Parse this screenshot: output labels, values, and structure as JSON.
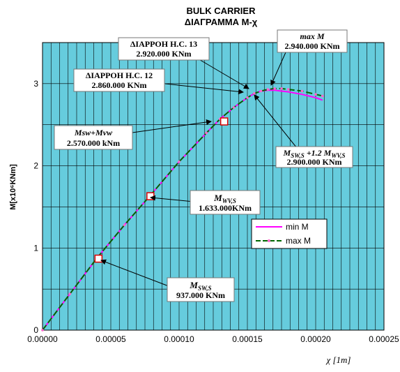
{
  "chart_data": {
    "type": "line",
    "title": "BULK CARRIER",
    "subtitle": "ΔΙΑΓΡΑΜΜΑ M-χ",
    "xlabel": "χ [1m]",
    "ylabel": "M[x10⁶KNm]",
    "xlim": [
      0,
      0.00025
    ],
    "ylim": [
      0,
      3.5
    ],
    "x_ticks": [
      "0.00000",
      "0.00005",
      "0.00010",
      "0.00015",
      "0.00020",
      "0.00025"
    ],
    "y_ticks": [
      "0",
      "1",
      "2",
      "3"
    ],
    "grid": true,
    "legend_position": "right",
    "background_color": "#66ccdd",
    "series": [
      {
        "name": "min M",
        "color": "#ff00ff",
        "x": [
          0,
          2e-05,
          4e-05,
          6e-05,
          8e-05,
          0.0001,
          0.00012,
          0.00013,
          0.00014,
          0.00015,
          0.000155,
          0.00016,
          0.000165,
          0.00017,
          0.000175,
          0.00018,
          0.00019,
          0.0002,
          0.000205
        ],
        "y": [
          0,
          0.44,
          0.88,
          1.28,
          1.66,
          2.05,
          2.4,
          2.57,
          2.71,
          2.83,
          2.88,
          2.91,
          2.92,
          2.92,
          2.91,
          2.9,
          2.87,
          2.83,
          2.8
        ]
      },
      {
        "name": "max  M",
        "color": "#006600",
        "x": [
          0,
          2e-05,
          4e-05,
          6e-05,
          8e-05,
          0.0001,
          0.00012,
          0.00013,
          0.00014,
          0.00015,
          0.000155,
          0.00016,
          0.000165,
          0.00017,
          0.000175,
          0.00018,
          0.00019,
          0.0002,
          0.000205
        ],
        "y": [
          0,
          0.44,
          0.88,
          1.28,
          1.66,
          2.05,
          2.4,
          2.57,
          2.71,
          2.83,
          2.88,
          2.91,
          2.93,
          2.94,
          2.94,
          2.93,
          2.91,
          2.87,
          2.85
        ]
      }
    ],
    "markers": [
      {
        "x": 4.1e-05,
        "y": 0.87
      },
      {
        "x": 7.9e-05,
        "y": 1.63
      },
      {
        "x": 0.000133,
        "y": 2.54
      }
    ],
    "annotations": [
      {
        "id": "hc13",
        "lines": [
          "ΔΙΑΡΡΟΗ Η.C. 13",
          "2.920.000 KNm"
        ]
      },
      {
        "id": "maxm",
        "lines": [
          "max M",
          "2.940.000 KNm"
        ]
      },
      {
        "id": "hc12",
        "lines": [
          "ΔΙΑΡΡΟΗ Η.C. 12",
          "2.860.000 KNm"
        ]
      },
      {
        "id": "mswmvw",
        "lines": [
          "Msw+Mvw",
          "2.570.000 kNm"
        ]
      },
      {
        "id": "msw12",
        "main": "M",
        "sub1": "SW,S",
        "mid": " +1.2 M",
        "sub2": "WV,S",
        "value": "2.900.000 KNm"
      },
      {
        "id": "mwv",
        "main": "M",
        "sub": "WV,S",
        "value": "1.633.000KNm"
      },
      {
        "id": "msw",
        "main": "M",
        "sub": "SW,S",
        "value": "937.000 KNm"
      }
    ]
  }
}
